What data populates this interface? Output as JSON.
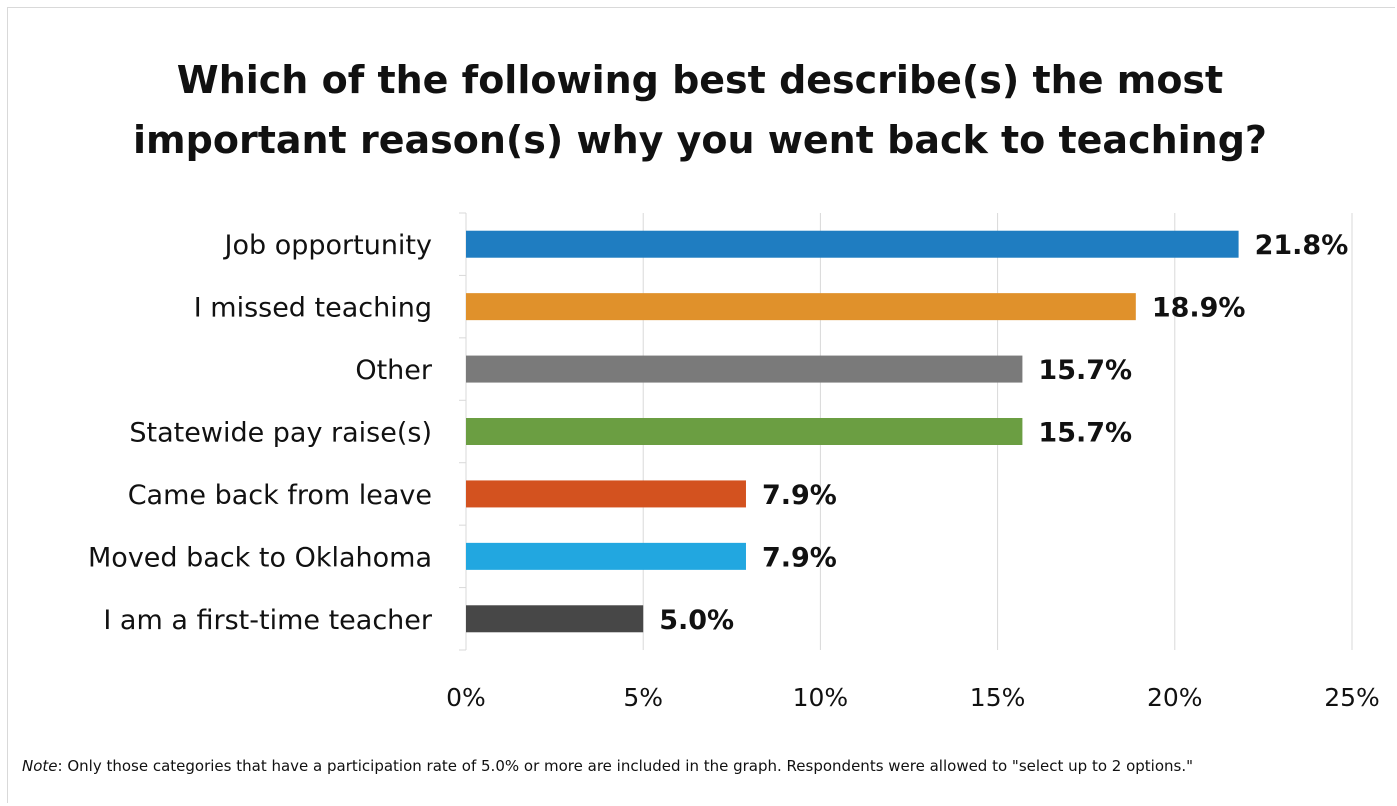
{
  "chart_data": {
    "type": "bar",
    "orientation": "horizontal",
    "title_lines": [
      "Which of the following best describe(s) the most",
      "important reason(s) why you went back to teaching?"
    ],
    "categories": [
      "Job opportunity",
      "I missed teaching",
      "Other",
      "Statewide pay raise(s)",
      "Came back from leave",
      "Moved back to Oklahoma",
      "I am a first-time teacher"
    ],
    "values": [
      21.8,
      18.9,
      15.7,
      15.7,
      7.9,
      7.9,
      5.0
    ],
    "data_labels": [
      "21.8%",
      "18.9%",
      "15.7%",
      "15.7%",
      "7.9%",
      "7.9%",
      "5.0%"
    ],
    "colors": [
      "#1f7dc1",
      "#e0912b",
      "#7a7a7a",
      "#6b9e42",
      "#d3521f",
      "#22a7e0",
      "#474747"
    ],
    "xlim": [
      0,
      25
    ],
    "xticks": [
      0,
      5,
      10,
      15,
      20,
      25
    ],
    "xtick_labels": [
      "0%",
      "5%",
      "10%",
      "15%",
      "20%",
      "25%"
    ],
    "grid": true
  },
  "note": {
    "label": "Note",
    "text": ": Only those categories that have a participation rate of 5.0% or more are included in the graph. Respondents were allowed to \"select up to 2 options.\""
  }
}
